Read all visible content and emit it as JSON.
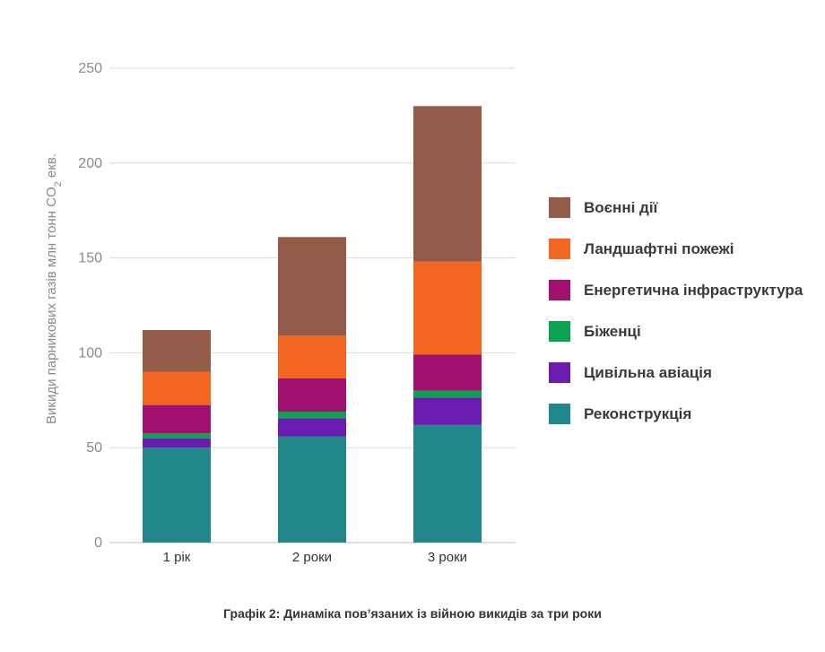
{
  "chart_data": {
    "type": "bar",
    "stacked": true,
    "categories": [
      "1 рік",
      "2 роки",
      "3 роки"
    ],
    "ylabel_prefix": "Викиди парникових газів млн тонн CO",
    "ylabel_sub": "2",
    "ylabel_suffix": " екв.",
    "ylim": [
      0,
      250
    ],
    "yticks": [
      "0",
      "50",
      "100",
      "150",
      "200",
      "250"
    ],
    "grid": true,
    "legend_position": "right",
    "series": [
      {
        "name": "Реконструкція",
        "color": "#22878a",
        "values": [
          50,
          56,
          62
        ]
      },
      {
        "name": "Цивільна авіація",
        "color": "#6a1cb0",
        "values": [
          5,
          9.5,
          14.5
        ]
      },
      {
        "name": "Біженці",
        "color": "#0ca350",
        "values": [
          2.5,
          3.5,
          3.5
        ]
      },
      {
        "name": "Енергетична інфраструктура",
        "color": "#a0106e",
        "values": [
          15,
          17.5,
          19
        ]
      },
      {
        "name": "Ландшафтні пожежі",
        "color": "#f26622",
        "values": [
          17.5,
          22.5,
          49
        ]
      },
      {
        "name": "Воєнні дії",
        "color": "#945c48",
        "values": [
          22,
          52,
          82
        ]
      }
    ]
  },
  "legend_items": [
    {
      "label": "Воєнні дії",
      "color": "#945c48"
    },
    {
      "label": "Ландшафтні пожежі",
      "color": "#f26622"
    },
    {
      "label": "Енергетична інфраструктура",
      "color": "#a0106e"
    },
    {
      "label": "Біженці",
      "color": "#0ca350"
    },
    {
      "label": "Цивільна авіація",
      "color": "#6a1cb0"
    },
    {
      "label": "Реконструкція",
      "color": "#22878a"
    }
  ],
  "caption": "Графік 2: Динаміка пов’язаних із війною викидів за три роки"
}
